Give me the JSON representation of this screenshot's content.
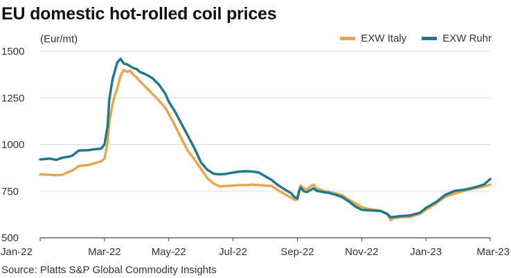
{
  "title": "EU domestic hot-rolled coil prices",
  "unit_label": "(Eur/mt)",
  "source": "Source: Platts S&P Global Commodity Insights",
  "colors": {
    "italy": "#E8A64B",
    "ruhr": "#20788C",
    "grid": "#d9d9d9",
    "axis": "#444444"
  },
  "legend": [
    {
      "label": "EXW Italy",
      "color": "#E8A64B"
    },
    {
      "label": "EXW Ruhr",
      "color": "#20788C"
    }
  ],
  "chart_data": {
    "type": "line",
    "title": "EU domestic hot-rolled coil prices",
    "ylabel": "(Eur/mt)",
    "xlabel": "",
    "ylim": [
      500,
      1500
    ],
    "yticks": [
      {
        "value": 500,
        "label": "500"
      },
      {
        "value": 750,
        "label": "750"
      },
      {
        "value": 1000,
        "label": "1000"
      },
      {
        "value": 1250,
        "label": "1250"
      },
      {
        "value": 1500,
        "label": "1500"
      }
    ],
    "xlim": [
      0,
      14
    ],
    "xticks": [
      {
        "value": 0,
        "label": "Jan-22"
      },
      {
        "value": 2,
        "label": "Mar-22"
      },
      {
        "value": 4,
        "label": "May-22"
      },
      {
        "value": 6,
        "label": "Jul-22"
      },
      {
        "value": 8,
        "label": "Sep-22"
      },
      {
        "value": 10,
        "label": "Nov-22"
      },
      {
        "value": 12,
        "label": "Jan-23"
      },
      {
        "value": 14,
        "label": "Mar-23"
      }
    ],
    "series": [
      {
        "name": "EXW Italy",
        "color": "#E8A64B",
        "x": [
          0.0,
          0.3,
          0.5,
          0.7,
          0.9,
          1.0,
          1.2,
          1.5,
          1.7,
          1.9,
          2.0,
          2.1,
          2.15,
          2.25,
          2.3,
          2.4,
          2.5,
          2.6,
          2.7,
          2.8,
          2.9,
          3.0,
          3.1,
          3.3,
          3.5,
          3.7,
          3.9,
          4.0,
          4.2,
          4.4,
          4.6,
          4.8,
          5.0,
          5.2,
          5.4,
          5.6,
          5.8,
          6.0,
          6.2,
          6.4,
          6.6,
          6.8,
          7.0,
          7.2,
          7.4,
          7.6,
          7.8,
          7.9,
          8.0,
          8.05,
          8.1,
          8.2,
          8.3,
          8.4,
          8.5,
          8.6,
          8.8,
          9.0,
          9.2,
          9.4,
          9.6,
          9.8,
          10.0,
          10.2,
          10.4,
          10.6,
          10.8,
          10.9,
          11.0,
          11.2,
          11.5,
          11.8,
          12.0,
          12.3,
          12.6,
          12.9,
          13.2,
          13.5,
          13.8,
          14.0
        ],
        "values": [
          840,
          838,
          836,
          838,
          855,
          860,
          885,
          890,
          900,
          910,
          925,
          1010,
          1120,
          1215,
          1250,
          1300,
          1370,
          1400,
          1390,
          1395,
          1375,
          1360,
          1340,
          1305,
          1270,
          1235,
          1195,
          1165,
          1100,
          1030,
          965,
          920,
          870,
          820,
          790,
          775,
          778,
          780,
          783,
          782,
          785,
          783,
          780,
          778,
          755,
          735,
          715,
          705,
          705,
          740,
          780,
          765,
          760,
          775,
          785,
          765,
          752,
          745,
          738,
          728,
          705,
          685,
          665,
          655,
          650,
          645,
          625,
          595,
          605,
          610,
          612,
          628,
          650,
          682,
          720,
          738,
          752,
          765,
          775,
          785
        ]
      },
      {
        "name": "EXW Ruhr",
        "color": "#20788C",
        "x": [
          0.0,
          0.3,
          0.5,
          0.7,
          0.9,
          1.0,
          1.2,
          1.5,
          1.7,
          1.9,
          2.0,
          2.1,
          2.15,
          2.25,
          2.3,
          2.4,
          2.5,
          2.6,
          2.7,
          2.8,
          2.9,
          3.0,
          3.1,
          3.3,
          3.5,
          3.7,
          3.9,
          4.0,
          4.2,
          4.4,
          4.6,
          4.8,
          5.0,
          5.2,
          5.4,
          5.6,
          5.8,
          6.0,
          6.2,
          6.4,
          6.6,
          6.8,
          7.0,
          7.2,
          7.4,
          7.6,
          7.8,
          7.9,
          8.0,
          8.05,
          8.1,
          8.2,
          8.3,
          8.4,
          8.5,
          8.6,
          8.8,
          9.0,
          9.2,
          9.4,
          9.6,
          9.8,
          10.0,
          10.2,
          10.4,
          10.6,
          10.8,
          10.9,
          11.0,
          11.2,
          11.5,
          11.8,
          12.0,
          12.3,
          12.6,
          12.9,
          13.2,
          13.5,
          13.8,
          14.0
        ],
        "values": [
          920,
          925,
          918,
          930,
          935,
          940,
          968,
          970,
          975,
          978,
          1000,
          1100,
          1240,
          1350,
          1380,
          1440,
          1460,
          1435,
          1430,
          1420,
          1410,
          1405,
          1390,
          1375,
          1355,
          1320,
          1270,
          1230,
          1175,
          1110,
          1045,
          980,
          905,
          865,
          843,
          840,
          843,
          850,
          855,
          857,
          855,
          850,
          830,
          810,
          782,
          760,
          740,
          720,
          710,
          750,
          770,
          750,
          745,
          755,
          765,
          752,
          745,
          740,
          730,
          718,
          695,
          668,
          650,
          648,
          646,
          643,
          628,
          610,
          612,
          616,
          620,
          633,
          660,
          690,
          730,
          752,
          758,
          770,
          785,
          815
        ]
      }
    ]
  }
}
